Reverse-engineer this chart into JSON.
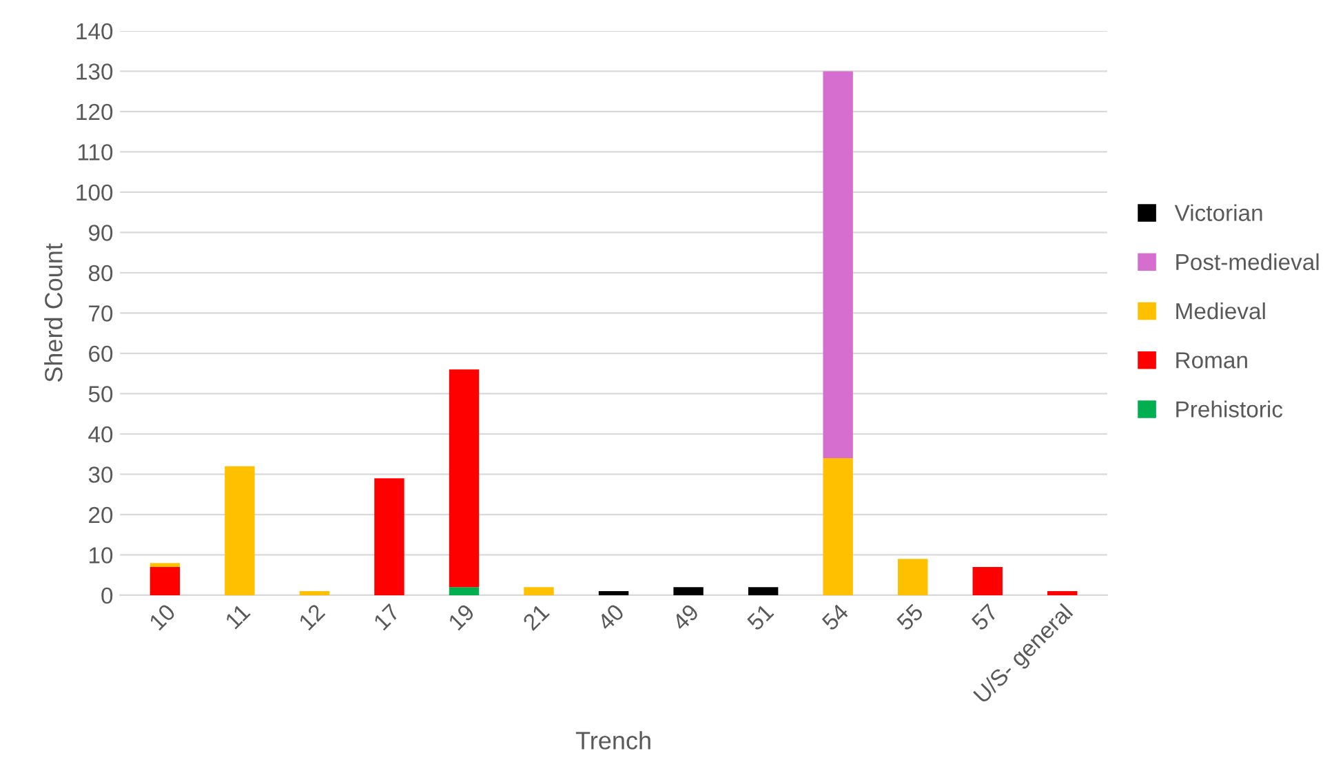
{
  "chart_data": {
    "type": "bar",
    "stacked": true,
    "xlabel": "Trench",
    "ylabel": "Sherd Count",
    "categories": [
      "10",
      "11",
      "12",
      "17",
      "19",
      "21",
      "40",
      "49",
      "51",
      "54",
      "55",
      "57",
      "U/S- general"
    ],
    "series": [
      {
        "name": "Prehistoric",
        "color": "#00b050",
        "values": [
          0,
          0,
          0,
          0,
          2,
          0,
          0,
          0,
          0,
          0,
          0,
          0,
          0
        ]
      },
      {
        "name": "Roman",
        "color": "#ff0000",
        "values": [
          7,
          0,
          0,
          29,
          54,
          0,
          0,
          0,
          0,
          0,
          0,
          7,
          1
        ]
      },
      {
        "name": "Medieval",
        "color": "#ffc000",
        "values": [
          1,
          32,
          1,
          0,
          0,
          2,
          0,
          0,
          0,
          34,
          9,
          0,
          0
        ]
      },
      {
        "name": "Post-medieval",
        "color": "#d56ecf",
        "values": [
          0,
          0,
          0,
          0,
          0,
          0,
          0,
          0,
          0,
          96,
          0,
          0,
          0
        ]
      },
      {
        "name": "Victorian",
        "color": "#000000",
        "values": [
          0,
          0,
          0,
          0,
          0,
          0,
          1,
          2,
          2,
          0,
          0,
          0,
          0
        ]
      }
    ],
    "ylim": [
      0,
      140
    ],
    "yticks": [
      0,
      10,
      20,
      30,
      40,
      50,
      60,
      70,
      80,
      90,
      100,
      110,
      120,
      130,
      140
    ],
    "grid": "y",
    "legend": "right"
  }
}
